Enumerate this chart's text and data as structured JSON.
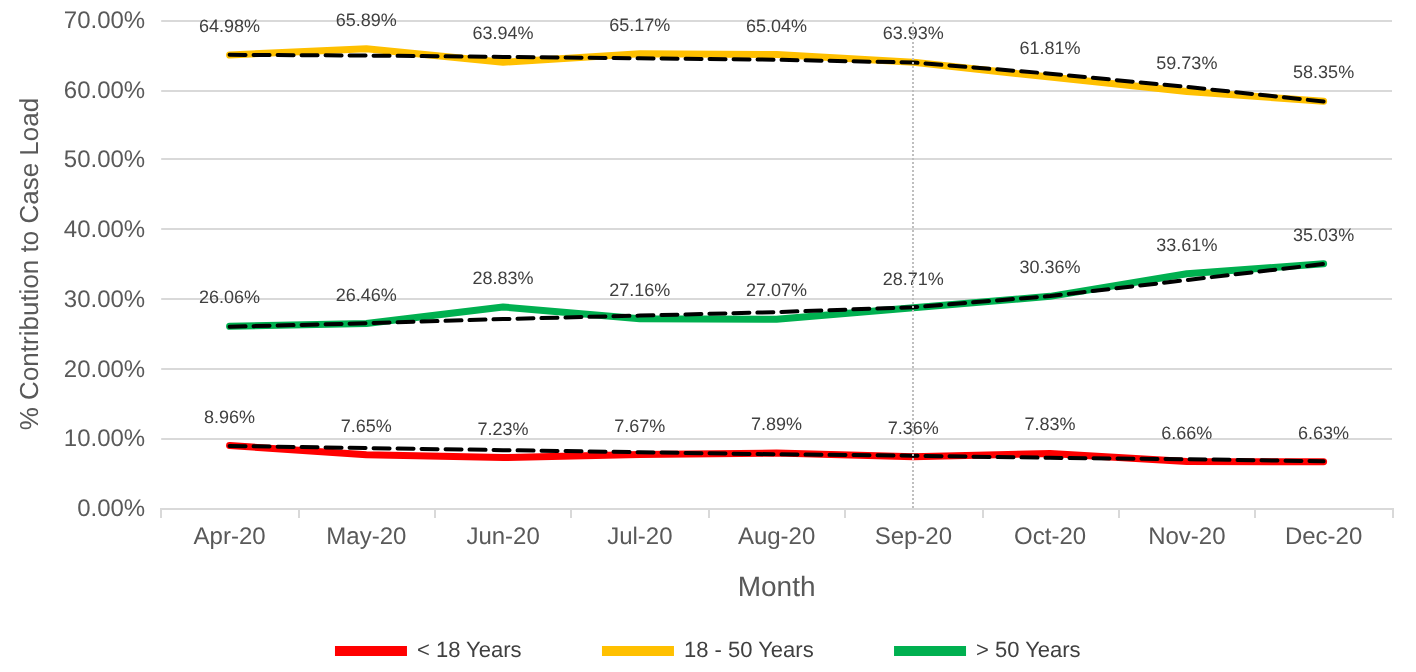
{
  "chart_data": {
    "type": "line",
    "xlabel": "Month",
    "ylabel": "% Contribution to Case Load",
    "categories": [
      "Apr-20",
      "May-20",
      "Jun-20",
      "Jul-20",
      "Aug-20",
      "Sep-20",
      "Oct-20",
      "Nov-20",
      "Dec-20"
    ],
    "series": [
      {
        "name": "< 18 Years",
        "color": "#ff0000",
        "values": [
          8.96,
          7.65,
          7.23,
          7.67,
          7.89,
          7.36,
          7.83,
          6.66,
          6.63
        ],
        "value_labels": [
          "8.96%",
          "7.65%",
          "7.23%",
          "7.67%",
          "7.89%",
          "7.36%",
          "7.83%",
          "6.66%",
          "6.63%"
        ]
      },
      {
        "name": "18 - 50 Years",
        "color": "#ffc000",
        "values": [
          64.98,
          65.89,
          63.94,
          65.17,
          65.04,
          63.93,
          61.81,
          59.73,
          58.35
        ],
        "value_labels": [
          "64.98%",
          "65.89%",
          "63.94%",
          "65.17%",
          "65.04%",
          "63.93%",
          "61.81%",
          "59.73%",
          "58.35%"
        ]
      },
      {
        "name": "> 50 Years",
        "color": "#00b050",
        "values": [
          26.06,
          26.46,
          28.83,
          27.16,
          27.07,
          28.71,
          30.36,
          33.61,
          35.03
        ],
        "value_labels": [
          "26.06%",
          "26.46%",
          "28.83%",
          "27.16%",
          "27.07%",
          "28.71%",
          "30.36%",
          "33.61%",
          "35.03%"
        ]
      },
      {
        "type": "line",
        "color": "#000000",
        "line_style": "dashed",
        "values": [
          8.9,
          8.6,
          8.3,
          8.0,
          7.7,
          7.5,
          7.2,
          7.0,
          6.7
        ]
      },
      {
        "type": "line",
        "color": "#000000",
        "line_style": "dashed",
        "values": [
          65.0,
          64.9,
          64.7,
          64.5,
          64.3,
          63.9,
          62.3,
          60.4,
          58.3
        ]
      },
      {
        "type": "line",
        "color": "#000000",
        "line_style": "dashed",
        "values": [
          26.0,
          26.5,
          27.1,
          27.6,
          28.1,
          28.8,
          30.4,
          32.7,
          35.0
        ]
      }
    ],
    "ylim": [
      0,
      70
    ],
    "yticks": [
      {
        "value": 0,
        "label": "0.00%"
      },
      {
        "value": 10,
        "label": "10.00%"
      },
      {
        "value": 20,
        "label": "20.00%"
      },
      {
        "value": 30,
        "label": "30.00%"
      },
      {
        "value": 40,
        "label": "40.00%"
      },
      {
        "value": 50,
        "label": "50.00%"
      },
      {
        "value": 60,
        "label": "60.00%"
      },
      {
        "value": 70,
        "label": "70.00%"
      }
    ],
    "ref_lines": [
      {
        "axis": "x",
        "value": "Sep-20",
        "color": "#bfbfbf",
        "line_style": "dotted"
      }
    ],
    "grid": "y",
    "legend": "bottom",
    "marker": "none",
    "line_style": "solid"
  }
}
